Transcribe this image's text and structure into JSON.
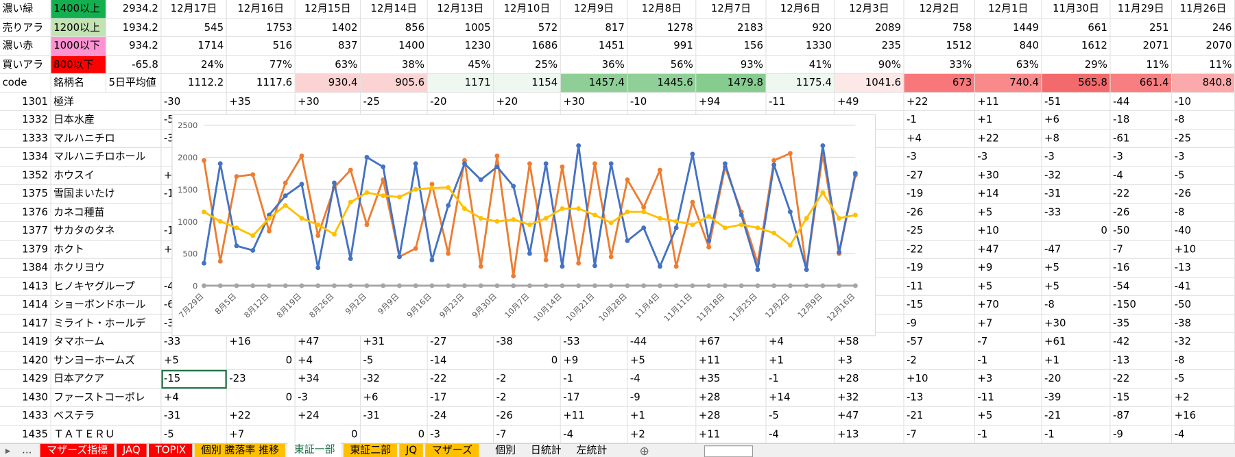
{
  "top_rows": [
    {
      "cells": [
        "濃い緑",
        "1400以上",
        "2934.2",
        "12月17日",
        "12月16日",
        "12月15日",
        "12月14日",
        "12月13日",
        "12月10日",
        "12月9日",
        "12月8日",
        "12月7日",
        "12月6日",
        "12月3日",
        "12月2日",
        "12月1日",
        "11月30日",
        "11月29日",
        "11月26日"
      ],
      "fills": [
        null,
        "#12b04f",
        null,
        null,
        null,
        null,
        null,
        null,
        null,
        null,
        null,
        null,
        null,
        null,
        null,
        null,
        null,
        null,
        null
      ]
    },
    {
      "cells": [
        "売りアラ",
        "1200以上",
        "1934.2",
        "545",
        "1753",
        "1402",
        "856",
        "1005",
        "572",
        "817",
        "1278",
        "2183",
        "920",
        "2089",
        "758",
        "1449",
        "661",
        "251",
        "246"
      ],
      "fills": [
        null,
        "#c4e3b3",
        null,
        null,
        null,
        null,
        null,
        null,
        null,
        null,
        null,
        null,
        null,
        null,
        null,
        null,
        null,
        null,
        null
      ]
    },
    {
      "cells": [
        "濃い赤",
        "1000以下",
        "934.2",
        "1714",
        "516",
        "837",
        "1400",
        "1230",
        "1686",
        "1451",
        "991",
        "156",
        "1330",
        "235",
        "1512",
        "840",
        "1612",
        "2071",
        "2070"
      ],
      "fills": [
        null,
        "#ff92d0",
        null,
        null,
        null,
        null,
        null,
        null,
        null,
        null,
        null,
        null,
        null,
        null,
        null,
        null,
        null,
        null,
        null
      ]
    },
    {
      "cells": [
        "買いアラ",
        "800以下",
        "-65.8",
        "24%",
        "77%",
        "63%",
        "38%",
        "45%",
        "25%",
        "36%",
        "56%",
        "93%",
        "41%",
        "90%",
        "33%",
        "63%",
        "29%",
        "11%",
        "11%"
      ],
      "fills": [
        null,
        "#ff0000",
        null,
        null,
        null,
        null,
        null,
        null,
        null,
        null,
        null,
        null,
        null,
        null,
        null,
        null,
        null,
        null,
        null
      ]
    },
    {
      "cells": [
        "code",
        "銘柄名",
        "5日平均値",
        "1112.2",
        "1117.6",
        "930.4",
        "905.6",
        "1171",
        "1154",
        "1457.4",
        "1445.6",
        "1479.8",
        "1175.4",
        "1041.6",
        "673",
        "740.4",
        "565.8",
        "661.4",
        "840.8"
      ],
      "fills": [
        null,
        null,
        null,
        null,
        null,
        "#fbd3d3",
        "#fbd3d3",
        "#eef8f0",
        "#eef8f0",
        "#8fcf97",
        "#90d098",
        "#86cc8f",
        "#eef8f0",
        "#fde8e8",
        "#f8777a",
        "#f88a8c",
        "#f36a6c",
        "#f77f81",
        "#fba9aa"
      ]
    }
  ],
  "rows": [
    {
      "code": "1301",
      "name": "極洋",
      "cells": [
        "-30",
        "+35",
        "+30",
        "-25",
        "-20",
        "+20",
        "+30",
        "-10",
        "+94",
        "-11",
        "+49",
        "+22",
        "+11",
        "-51",
        "-44",
        "-10"
      ]
    },
    {
      "code": "1332",
      "name": "日本水産",
      "cells": [
        "-5",
        null,
        null,
        null,
        null,
        null,
        null,
        null,
        null,
        null,
        null,
        "-1",
        "+1",
        "+6",
        "-18",
        "-8"
      ]
    },
    {
      "code": "1333",
      "name": "マルハニチロ",
      "cells": [
        "-3",
        null,
        null,
        null,
        null,
        null,
        null,
        null,
        null,
        null,
        null,
        "+4",
        "+22",
        "+8",
        "-61",
        "-25"
      ]
    },
    {
      "code": "1334",
      "name": "マルハニチロホール",
      "cells": [
        null,
        null,
        null,
        null,
        null,
        null,
        null,
        null,
        null,
        null,
        null,
        "-3",
        "-3",
        "-3",
        "-3",
        "-3"
      ]
    },
    {
      "code": "1352",
      "name": "ホウスイ",
      "cells": [
        "+",
        null,
        null,
        null,
        null,
        null,
        null,
        null,
        null,
        null,
        null,
        "-27",
        "+30",
        "-32",
        "-4",
        "-5"
      ]
    },
    {
      "code": "1375",
      "name": "雪国まいたけ",
      "cells": [
        "-1",
        null,
        null,
        null,
        null,
        null,
        null,
        null,
        null,
        null,
        null,
        "-19",
        "+14",
        "-31",
        "-22",
        "-26"
      ]
    },
    {
      "code": "1376",
      "name": "カネコ種苗",
      "cells": [
        null,
        null,
        null,
        null,
        null,
        null,
        null,
        null,
        null,
        null,
        null,
        "-26",
        "+5",
        "-33",
        "-26",
        "-8"
      ]
    },
    {
      "code": "1377",
      "name": "サカタのタネ",
      "cells": [
        "-1",
        null,
        null,
        null,
        null,
        null,
        null,
        null,
        null,
        null,
        null,
        "-25",
        "+10",
        "0",
        "-50",
        "-40"
      ]
    },
    {
      "code": "1379",
      "name": "ホクト",
      "cells": [
        "+",
        null,
        null,
        null,
        null,
        null,
        null,
        null,
        null,
        null,
        null,
        "-22",
        "+47",
        "-47",
        "-7",
        "+10"
      ]
    },
    {
      "code": "1384",
      "name": "ホクリヨウ",
      "cells": [
        null,
        null,
        null,
        null,
        null,
        null,
        null,
        null,
        null,
        null,
        null,
        "-19",
        "+9",
        "+5",
        "-16",
        "-13"
      ]
    },
    {
      "code": "1413",
      "name": "ヒノキヤグループ",
      "cells": [
        "-4",
        null,
        null,
        null,
        null,
        null,
        null,
        null,
        null,
        null,
        null,
        "-11",
        "+5",
        "+5",
        "-54",
        "-41"
      ]
    },
    {
      "code": "1414",
      "name": "ショーボンドホール",
      "cells": [
        "-6",
        null,
        null,
        null,
        null,
        null,
        null,
        null,
        null,
        null,
        null,
        "-15",
        "+70",
        "-8",
        "-150",
        "-50"
      ]
    },
    {
      "code": "1417",
      "name": "ミライト・ホールデ",
      "cells": [
        "-3",
        null,
        null,
        null,
        null,
        null,
        null,
        null,
        null,
        null,
        null,
        "-9",
        "+7",
        "+30",
        "-35",
        "-38"
      ]
    },
    {
      "code": "1419",
      "name": "タマホーム",
      "cells": [
        "-33",
        "+16",
        "+47",
        "+31",
        "-27",
        "-38",
        "-53",
        "-44",
        "+67",
        "+4",
        "+58",
        "-57",
        "-7",
        "+61",
        "-42",
        "-32"
      ]
    },
    {
      "code": "1420",
      "name": "サンヨーホームズ",
      "cells": [
        "+5",
        "0",
        "+4",
        "-5",
        "-14",
        "0",
        "+9",
        "+5",
        "+11",
        "+1",
        "+3",
        "-2",
        "-1",
        "+1",
        "-13",
        "-8"
      ]
    },
    {
      "code": "1429",
      "name": "日本アクア",
      "cells": [
        "-15",
        "-23",
        "+34",
        "-32",
        "-22",
        "-2",
        "-1",
        "-4",
        "+35",
        "-1",
        "+28",
        "+10",
        "+3",
        "-20",
        "-22",
        "-5"
      ]
    },
    {
      "code": "1430",
      "name": "ファーストコーポレ",
      "cells": [
        "+4",
        "0",
        "-3",
        "+6",
        "-17",
        "-2",
        "-17",
        "-9",
        "+28",
        "+14",
        "+32",
        "-13",
        "-11",
        "-39",
        "-15",
        "+2"
      ]
    },
    {
      "code": "1433",
      "name": "ベステラ",
      "cells": [
        "-31",
        "+22",
        "+24",
        "-31",
        "-24",
        "-26",
        "+11",
        "+1",
        "+28",
        "-5",
        "+47",
        "-21",
        "+5",
        "-21",
        "-87",
        "+16"
      ]
    },
    {
      "code": "1435",
      "name": "ＴＡＴＥＲＵ",
      "cells": [
        "-5",
        "+7",
        "0",
        "0",
        "-3",
        "-7",
        "-4",
        "+2",
        "+11",
        "-4",
        "+13",
        "-7",
        "-1",
        "-1",
        "-9",
        "-4"
      ]
    }
  ],
  "chart": {
    "type": "line",
    "categories": [
      "7月29日",
      null,
      "8月5日",
      null,
      "8月12日",
      null,
      "8月19日",
      null,
      "8月26日",
      null,
      "9月2日",
      null,
      "9月9日",
      null,
      "9月16日",
      null,
      "9月23日",
      null,
      "9月30日",
      null,
      "10月7日",
      null,
      "10月14日",
      null,
      "10月21日",
      null,
      "10月28日",
      null,
      "11月4日",
      null,
      "11月11日",
      null,
      "11月18日",
      null,
      "11月25日",
      null,
      "12月2日",
      null,
      "12月9日",
      null,
      "12月16日"
    ],
    "series": [
      {
        "color": "#a5a5a5",
        "values": [
          0,
          0,
          0,
          0,
          0,
          0,
          0,
          0,
          0,
          0,
          0,
          0,
          0,
          0,
          0,
          0,
          0,
          0,
          0,
          0,
          0,
          0,
          0,
          0,
          0,
          0,
          0,
          0,
          0,
          0,
          0,
          0,
          0,
          0,
          0,
          0,
          0,
          0,
          0,
          0,
          0
        ]
      },
      {
        "color": "#ed7d31",
        "values": [
          1950,
          380,
          1700,
          1730,
          850,
          1600,
          2020,
          780,
          1530,
          1800,
          950,
          1650,
          450,
          580,
          1580,
          500,
          1950,
          300,
          2020,
          150,
          1900,
          400,
          1850,
          350,
          1900,
          450,
          1650,
          1220,
          1800,
          300,
          1300,
          600,
          1850,
          1150,
          350,
          1950,
          2060,
          250,
          2050,
          500,
          1720
        ]
      },
      {
        "color": "#4472c4",
        "values": [
          350,
          1900,
          620,
          550,
          1100,
          1400,
          1580,
          280,
          1600,
          420,
          2000,
          1850,
          450,
          1900,
          400,
          1250,
          1900,
          1650,
          1850,
          1550,
          500,
          1900,
          300,
          2180,
          310,
          1900,
          700,
          900,
          300,
          900,
          2050,
          700,
          1900,
          1100,
          250,
          1880,
          1150,
          250,
          2180,
          520,
          1750
        ]
      },
      {
        "color": "#ffc000",
        "values": [
          1150,
          1000,
          900,
          780,
          1050,
          1250,
          1050,
          950,
          800,
          1300,
          1450,
          1400,
          1380,
          1500,
          1520,
          1530,
          1200,
          1050,
          1000,
          1030,
          950,
          1050,
          1200,
          1200,
          1100,
          980,
          1150,
          1150,
          1050,
          1000,
          950,
          1080,
          900,
          950,
          900,
          820,
          630,
          1050,
          1450,
          1050,
          1100
        ]
      }
    ],
    "ylim": [
      0,
      2500
    ],
    "yticks": [
      0,
      500,
      1000,
      1500,
      2000,
      2500
    ],
    "grid": true
  },
  "tab_nav": "...",
  "tabs": [
    {
      "label": "マザーズ指標",
      "color": "#ff0000"
    },
    {
      "label": "JAQ",
      "color": "#ff0000"
    },
    {
      "label": "TOPIX",
      "color": "#ff0000"
    },
    {
      "label": "個別 騰落率 推移",
      "color": "#ffc000"
    },
    {
      "label": "東証一部",
      "color": "#ffffff",
      "active": true
    },
    {
      "label": "東証二部",
      "color": "#ffc000"
    },
    {
      "label": "JQ",
      "color": "#ffc000"
    },
    {
      "label": "マザーズ",
      "color": "#ffc000"
    },
    {
      "label": "個別"
    },
    {
      "label": "日統計"
    },
    {
      "label": "左統計"
    }
  ]
}
